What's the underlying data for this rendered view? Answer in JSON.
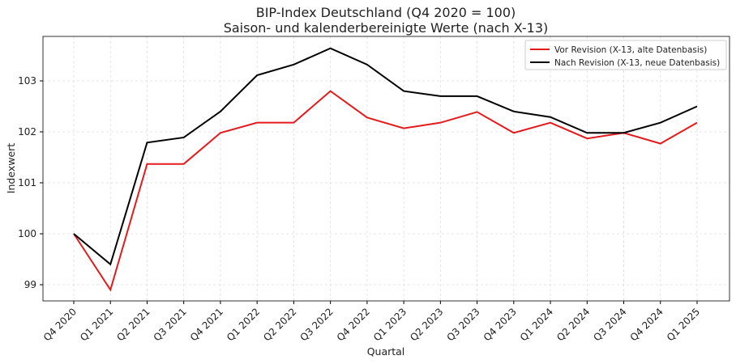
{
  "chart_data": {
    "type": "line",
    "title": "BIP-Index Deutschland (Q4 2020 = 100)",
    "subtitle": "Saison- und kalenderbereinigte Werte (nach X-13)",
    "xlabel": "Quartal",
    "ylabel": "Indexwert",
    "ylim": [
      98.68,
      103.87
    ],
    "yticks": [
      "99",
      "100",
      "101",
      "102",
      "103"
    ],
    "grid": true,
    "legend_position": "top-right",
    "categories": [
      "Q4 2020",
      "Q1 2021",
      "Q2 2021",
      "Q3 2021",
      "Q4 2021",
      "Q1 2022",
      "Q2 2022",
      "Q3 2022",
      "Q4 2022",
      "Q1 2023",
      "Q2 2023",
      "Q3 2023",
      "Q4 2023",
      "Q1 2024",
      "Q2 2024",
      "Q3 2024",
      "Q4 2024",
      "Q1 2025"
    ],
    "series": [
      {
        "name": "Vor Revision (X-13, alte Datenbasis)",
        "color": "#e41a1c",
        "values": [
          100,
          98.9,
          101.37,
          101.37,
          101.98,
          102.18,
          102.18,
          102.8,
          102.28,
          102.07,
          102.18,
          102.39,
          101.98,
          102.18,
          101.87,
          101.98,
          101.77,
          102.18
        ]
      },
      {
        "name": "Nach Revision (X-13, neue Datenbasis)",
        "color": "#000000",
        "values": [
          100,
          99.4,
          101.79,
          101.89,
          102.4,
          103.11,
          103.32,
          103.64,
          103.32,
          102.8,
          102.7,
          102.7,
          102.4,
          102.29,
          101.98,
          101.98,
          102.18,
          102.5
        ]
      }
    ]
  }
}
